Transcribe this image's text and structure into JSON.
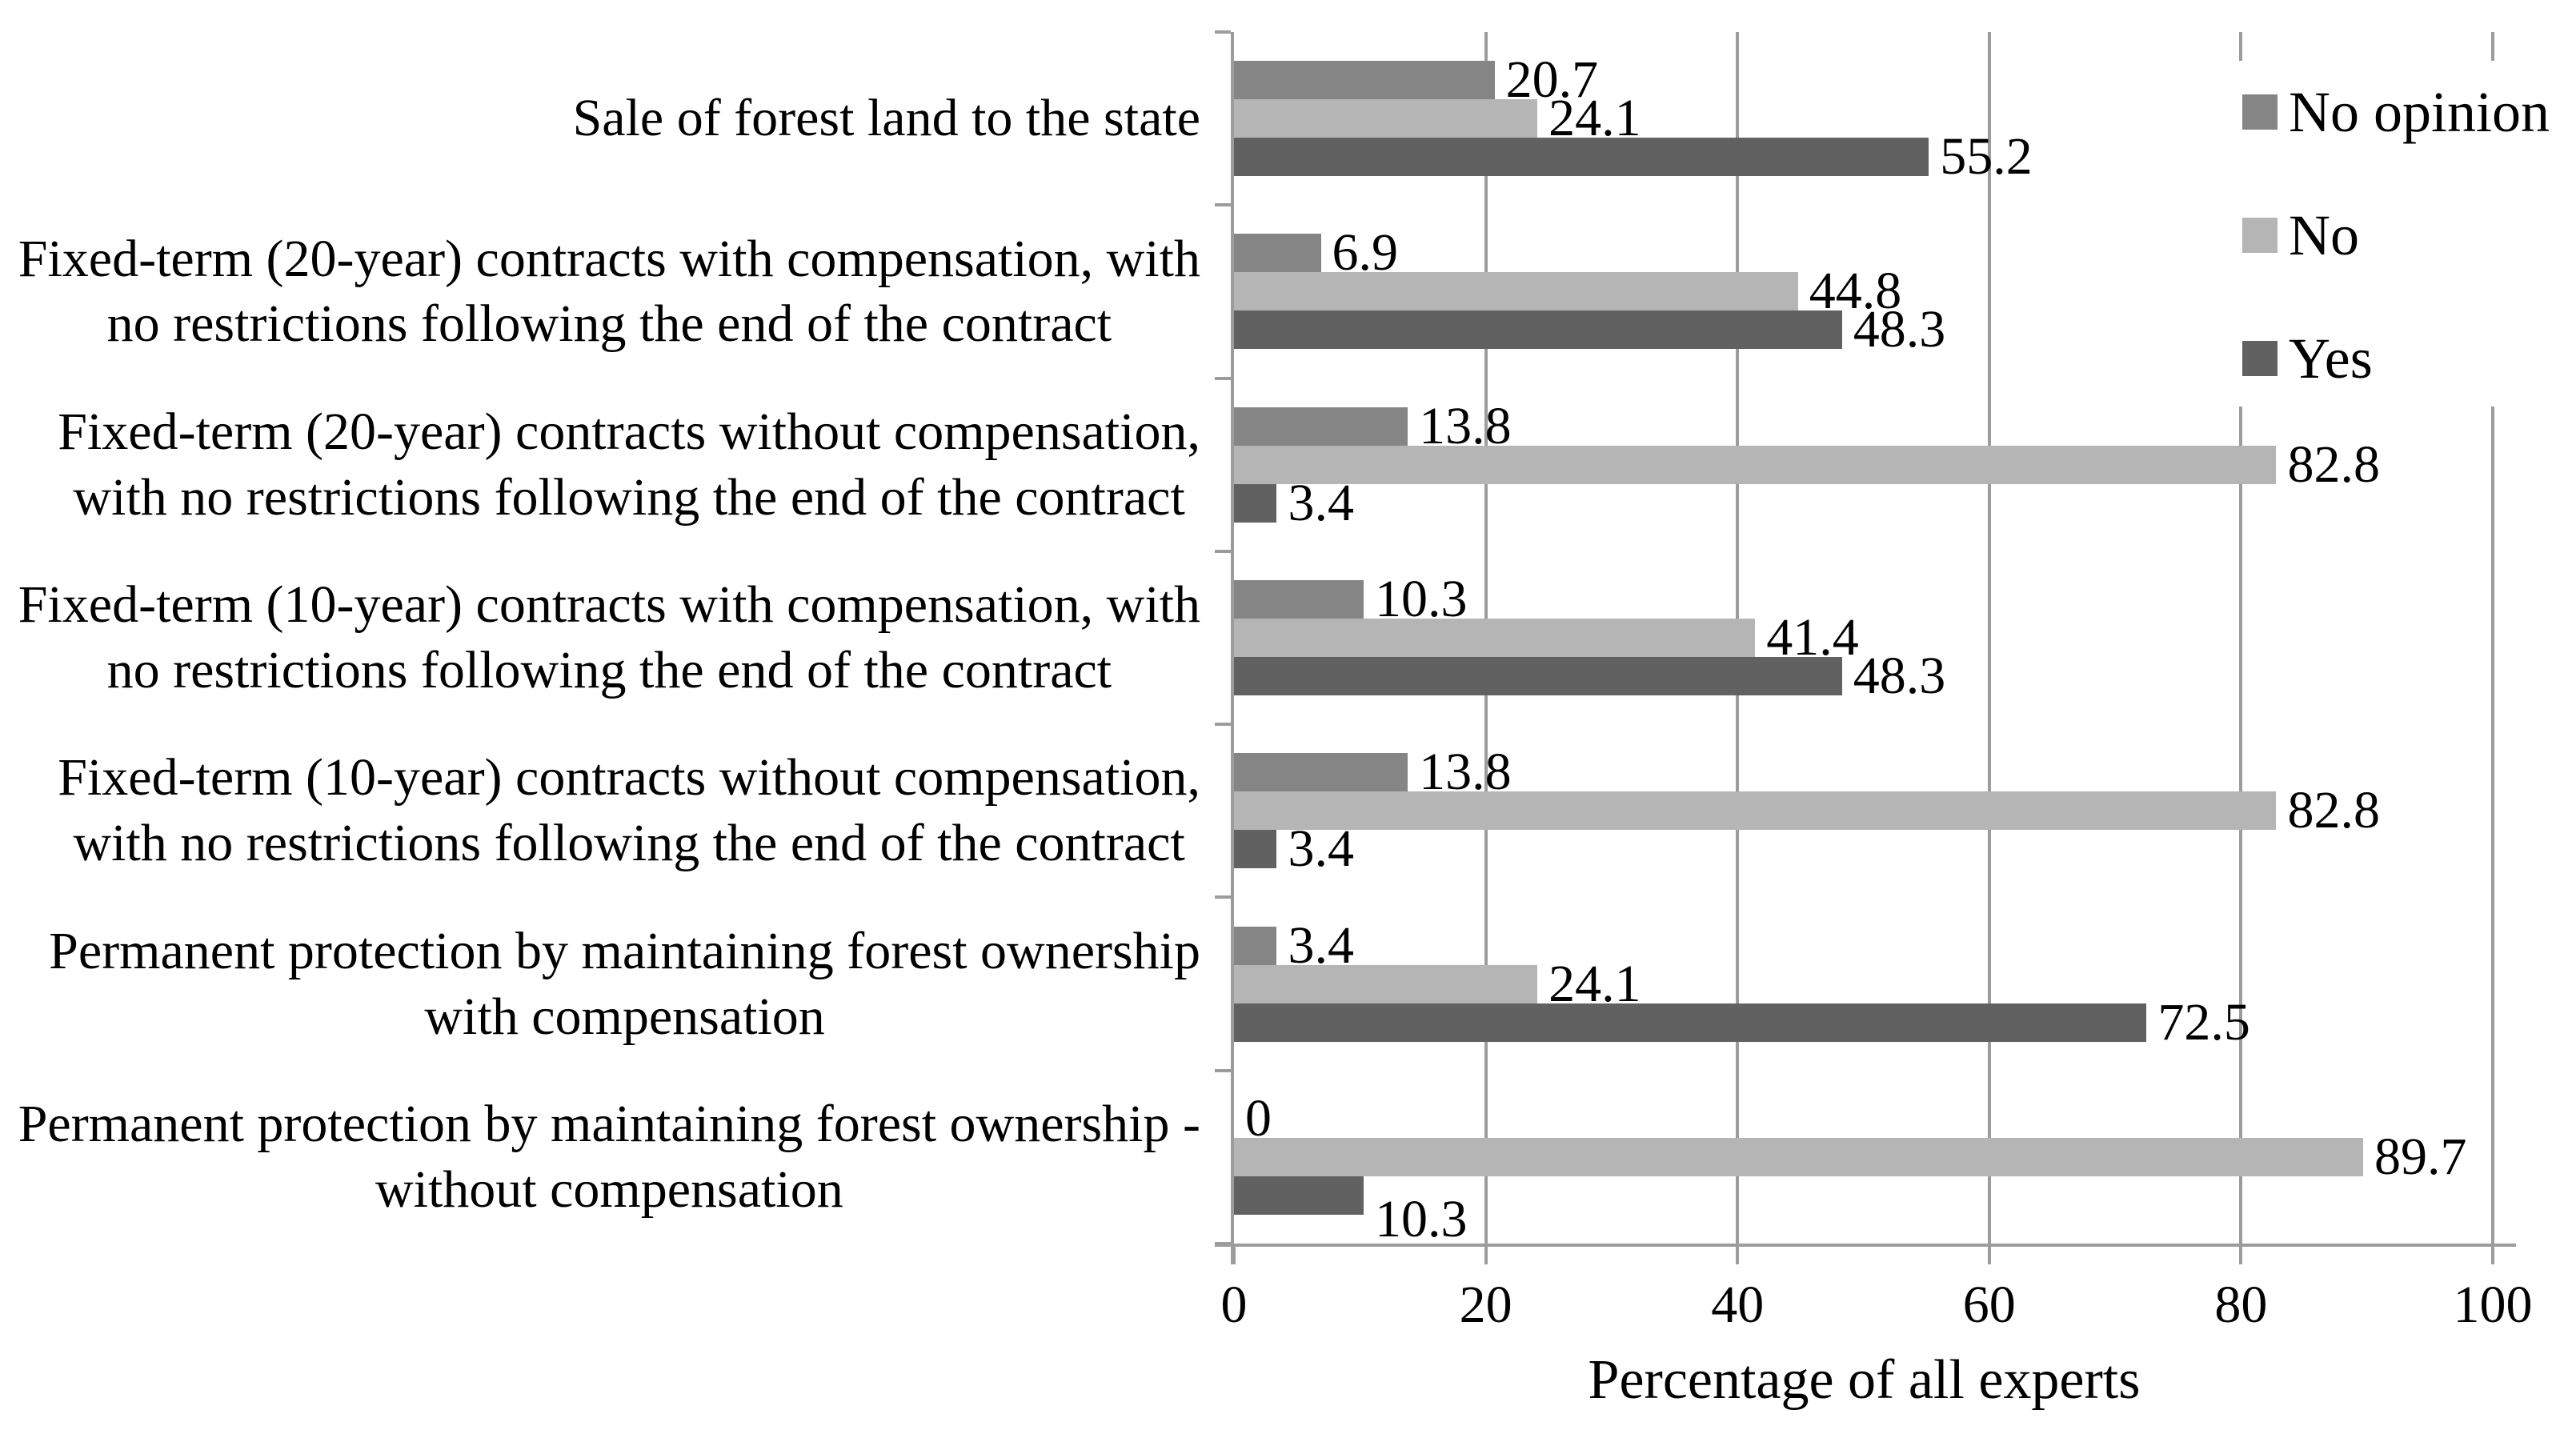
{
  "chart_data": {
    "type": "bar",
    "orientation": "horizontal",
    "title": "",
    "xlabel": "Percentage of all experts",
    "ylabel": "",
    "xlim": [
      0,
      100
    ],
    "xticks": [
      0,
      20,
      40,
      60,
      80,
      100
    ],
    "grid": "vertical",
    "legend_position": "top-right",
    "categories": [
      "Sale of forest land to the state",
      "Fixed-term (20-year) contracts with compensation, with\nno restrictions following the end of the contract",
      "Fixed-term (20-year) contracts without compensation,\nwith no restrictions following the end of the contract",
      "Fixed-term (10-year) contracts with compensation, with\nno restrictions following the end of the contract",
      "Fixed-term (10-year) contracts without compensation,\nwith no restrictions following the end of the contract",
      "Permanent protection by maintaining forest ownership\nwith compensation",
      "Permanent protection by maintaining forest ownership -\nwithout compensation"
    ],
    "series": [
      {
        "name": "No opinion",
        "color": "#858585",
        "values": [
          20.7,
          6.9,
          13.8,
          10.3,
          13.8,
          3.4,
          0
        ]
      },
      {
        "name": "No",
        "color": "#b5b5b5",
        "values": [
          24.1,
          44.8,
          82.8,
          41.4,
          82.8,
          24.1,
          89.7
        ]
      },
      {
        "name": "Yes",
        "color": "#616161",
        "values": [
          55.2,
          48.3,
          3.4,
          48.3,
          3.4,
          72.5,
          10.3
        ]
      }
    ],
    "label_offsets": [
      {
        "category_index": 6,
        "series_index": 2,
        "dy": 30
      }
    ],
    "axis_color": "#9c9c9c",
    "gridline_color": "#9c9c9c",
    "text_color": "#000000",
    "background_color": "#ffffff"
  }
}
